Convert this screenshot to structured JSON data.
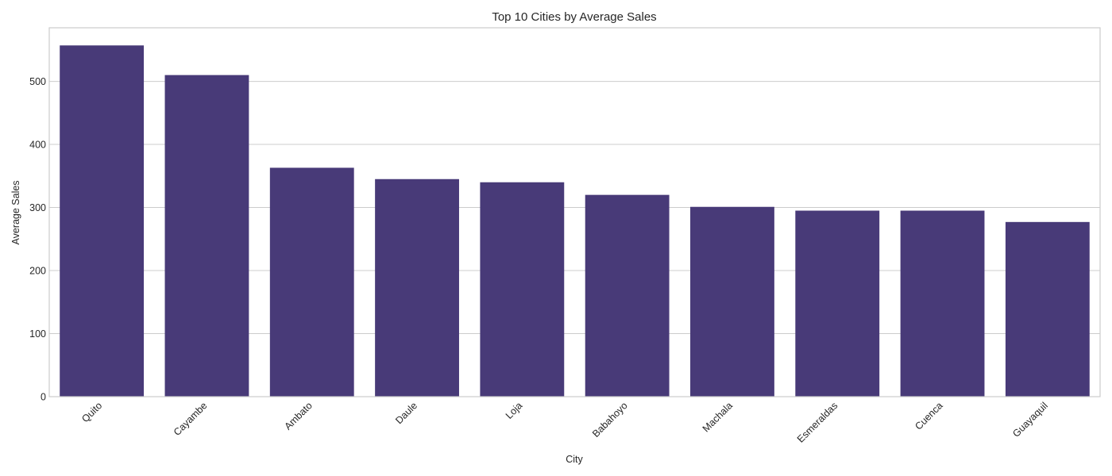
{
  "chart_data": {
    "type": "bar",
    "title": "Top 10 Cities by Average Sales",
    "xlabel": "City",
    "ylabel": "Average Sales",
    "categories": [
      "Quito",
      "Cayambe",
      "Ambato",
      "Daule",
      "Loja",
      "Babahoyo",
      "Machala",
      "Esmeraldas",
      "Cuenca",
      "Guayaquil"
    ],
    "values": [
      557,
      510,
      363,
      345,
      340,
      320,
      301,
      295,
      295,
      277
    ],
    "ylim": [
      0,
      585
    ],
    "yticks": [
      0,
      100,
      200,
      300,
      400,
      500
    ],
    "grid": "horizontal",
    "bar_color": "#483a78",
    "grid_color": "#cccccc",
    "frame_color": "#cccccc"
  }
}
